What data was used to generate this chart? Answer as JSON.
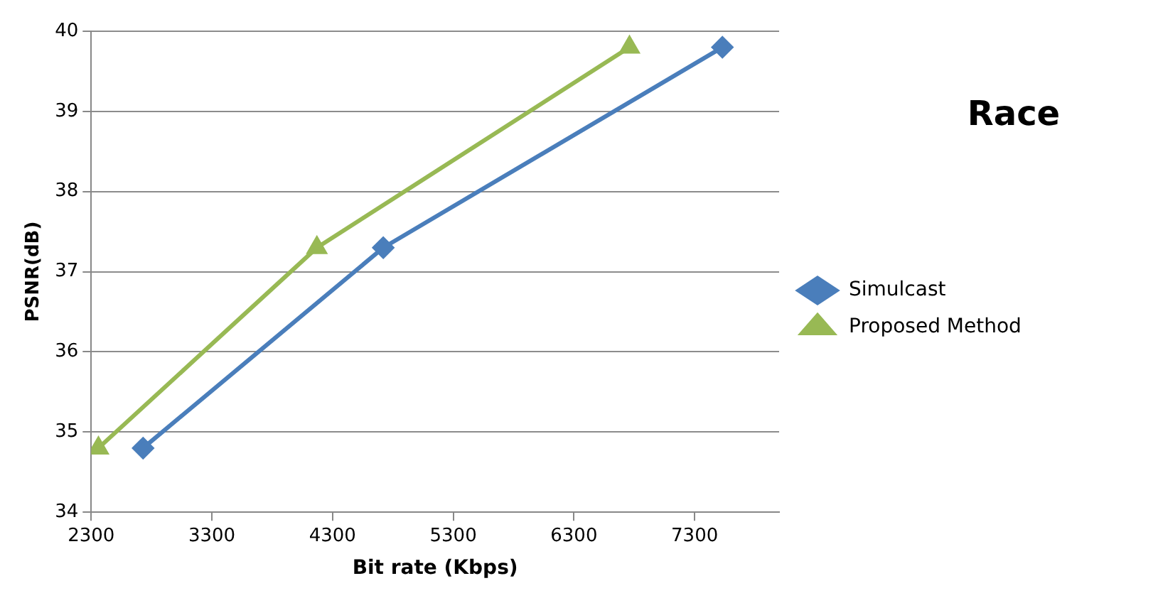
{
  "chart_data": {
    "type": "line",
    "title": "Race",
    "xlabel": "Bit rate (Kbps)",
    "ylabel": "PSNR(dB)",
    "xlim": [
      2300,
      8000
    ],
    "xticks": [
      2300,
      3300,
      4300,
      5300,
      6300,
      7300
    ],
    "ylim": [
      34,
      40
    ],
    "yticks": [
      34,
      35,
      36,
      37,
      38,
      39,
      40
    ],
    "grid": "y",
    "legend": "right",
    "line_style": "solid",
    "series": [
      {
        "name": "Simulcast",
        "color": "#4a7ebb",
        "marker": "diamond",
        "x": [
          2730,
          4720,
          7530
        ],
        "values": [
          34.8,
          37.3,
          39.8
        ]
      },
      {
        "name": "Proposed Method",
        "color": "#98b954",
        "marker": "triangle",
        "x": [
          2360,
          4170,
          6760
        ],
        "values": [
          34.8,
          37.3,
          39.8
        ]
      }
    ]
  }
}
